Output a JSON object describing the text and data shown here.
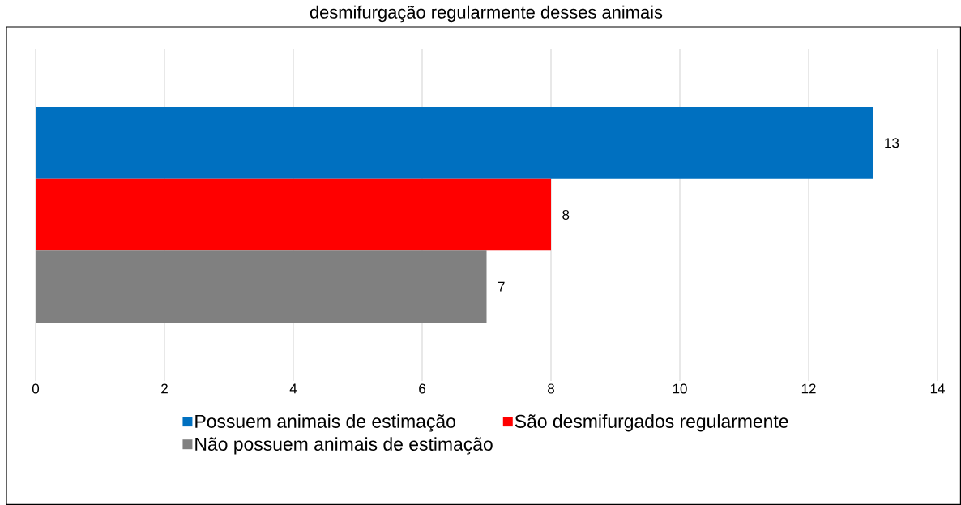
{
  "chart_data": {
    "type": "bar",
    "orientation": "horizontal",
    "title": "desmifurgação regularmente desses animais",
    "categories": [
      null
    ],
    "series": [
      {
        "name": "Possuem animais de estimação",
        "color": "#0070c0",
        "values": [
          13
        ]
      },
      {
        "name": "São desmifurgados regularmente",
        "color": "#ff0000",
        "values": [
          8
        ]
      },
      {
        "name": "Não possuem animais de estimação",
        "color": "#808080",
        "values": [
          7
        ]
      }
    ],
    "xlim": [
      0,
      14
    ],
    "xticks": [
      0,
      2,
      4,
      6,
      8,
      10,
      12,
      14
    ],
    "grid": "x",
    "legend": "bottom",
    "data_labels": true
  }
}
